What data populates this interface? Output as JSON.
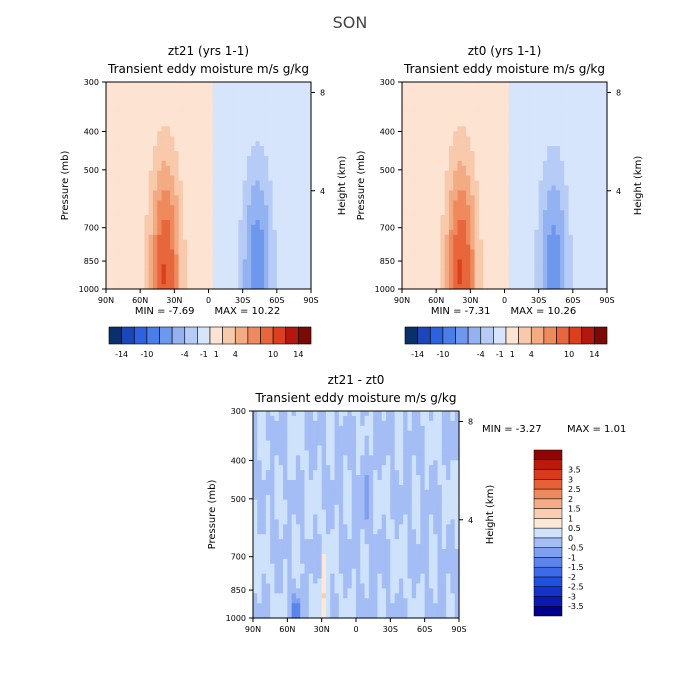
{
  "figure": {
    "season_title": "SON",
    "colors": {
      "fill_range": [
        "#08306b",
        "#1c45b8",
        "#2e61e0",
        "#4a7ee8",
        "#6e98ee",
        "#92b2f2",
        "#b6cbf6",
        "#d6e5fb",
        "#fde3d2",
        "#f8c9aa",
        "#f3ab84",
        "#ee8a5d",
        "#e7663b",
        "#dc3f1e",
        "#b2180d",
        "#7a0a05"
      ],
      "diff_levels": [
        "#00008b",
        "#0a1ab0",
        "#1433cc",
        "#1f50e0",
        "#3d6ae8",
        "#5c85ec",
        "#7fa0f0",
        "#a4bdf4",
        "#cfe2fb",
        "#fde8d8",
        "#f9cdb0",
        "#f4ad88",
        "#ee8a60",
        "#e66038",
        "#d83a1c",
        "#bb1a0a",
        "#8e0705"
      ]
    }
  },
  "chart_data": [
    {
      "type": "heatmap",
      "title": "zt21 (yrs 1-1)",
      "subtitle": "Transient eddy moisture m/s g/kg",
      "xlabel": "",
      "ylabel": "Pressure (mb)",
      "y2label": "Height (km)",
      "x_ticks": [
        "90N",
        "60N",
        "30N",
        "0",
        "30S",
        "60S",
        "90S"
      ],
      "y_ticks": [
        "300",
        "400",
        "500",
        "700",
        "850",
        "1000"
      ],
      "y2_ticks": [
        "8",
        "4"
      ],
      "xlim": [
        "90N",
        "90S"
      ],
      "ylim": [
        1000,
        300
      ],
      "min_label": "MIN = -7.69",
      "max_label": "MAX = 10.22",
      "min": -7.69,
      "max": 10.22,
      "colorbar_labels": [
        "-14",
        "-10",
        "-4",
        "-1",
        "1",
        "4",
        "10",
        "14"
      ],
      "features": [
        {
          "sign": "positive",
          "lat": 38,
          "p_center": 920,
          "p_top": 440,
          "peak": 10.22
        },
        {
          "sign": "negative",
          "lat": -43,
          "p_center": 930,
          "p_top": 430,
          "peak": -7.69
        }
      ]
    },
    {
      "type": "heatmap",
      "title": "zt0 (yrs 1-1)",
      "subtitle": "Transient eddy moisture m/s g/kg",
      "xlabel": "",
      "ylabel": "Pressure (mb)",
      "y2label": "Height (km)",
      "x_ticks": [
        "90N",
        "60N",
        "30N",
        "0",
        "30S",
        "60S",
        "90S"
      ],
      "y_ticks": [
        "300",
        "400",
        "500",
        "700",
        "850",
        "1000"
      ],
      "y2_ticks": [
        "8",
        "4"
      ],
      "xlim": [
        "90N",
        "90S"
      ],
      "ylim": [
        1000,
        300
      ],
      "min_label": "MIN = -7.31",
      "max_label": "MAX = 10.26",
      "min": -7.31,
      "max": 10.26,
      "colorbar_labels": [
        "-14",
        "-10",
        "-4",
        "-1",
        "1",
        "4",
        "10",
        "14"
      ],
      "features": [
        {
          "sign": "positive",
          "lat": 38,
          "p_center": 920,
          "p_top": 440,
          "peak": 10.26
        },
        {
          "sign": "negative",
          "lat": -43,
          "p_center": 930,
          "p_top": 430,
          "peak": -7.31
        }
      ]
    },
    {
      "type": "heatmap",
      "title": "zt21 - zt0",
      "subtitle": "Transient eddy moisture m/s g/kg",
      "xlabel": "",
      "ylabel": "Pressure (mb)",
      "y2label": "Height (km)",
      "x_ticks": [
        "90N",
        "60N",
        "30N",
        "0",
        "30S",
        "60S",
        "90S"
      ],
      "y_ticks": [
        "300",
        "400",
        "500",
        "700",
        "850",
        "1000"
      ],
      "y2_ticks": [
        "8",
        "4"
      ],
      "xlim": [
        "90N",
        "90S"
      ],
      "ylim": [
        1000,
        300
      ],
      "min_label": "MIN = -3.27",
      "max_label": "MAX = 1.01",
      "min": -3.27,
      "max": 1.01,
      "colorbar_labels": [
        "-3.5",
        "-3",
        "-2.5",
        "-2",
        "-1.5",
        "-1",
        "-0.5",
        "0",
        "0.5",
        "1",
        "1.5",
        "2",
        "2.5",
        "3",
        "3.5"
      ]
    }
  ]
}
